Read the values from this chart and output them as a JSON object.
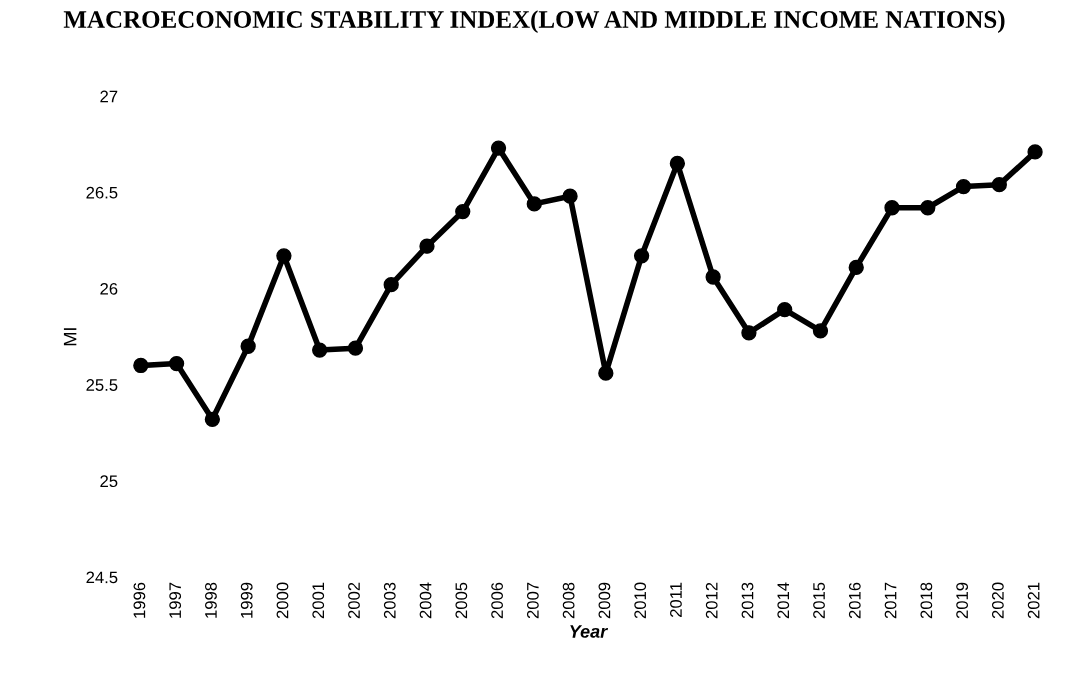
{
  "chart_data": {
    "type": "line",
    "title": "MACROECONOMIC STABILITY INDEX(LOW AND MIDDLE INCOME NATIONS)",
    "xlabel": "Year",
    "ylabel": "MI",
    "categories": [
      "1996",
      "1997",
      "1998",
      "1999",
      "2000",
      "2001",
      "2002",
      "2003",
      "2004",
      "2005",
      "2006",
      "2007",
      "2008",
      "2009",
      "2010",
      "2011",
      "2012",
      "2013",
      "2014",
      "2015",
      "2016",
      "2017",
      "2018",
      "2019",
      "2020",
      "2021"
    ],
    "series": [
      {
        "color": "#000000",
        "values": [
          25.6,
          25.61,
          25.32,
          25.7,
          26.17,
          25.68,
          25.69,
          26.02,
          26.22,
          26.4,
          26.73,
          26.44,
          26.48,
          25.56,
          26.17,
          26.65,
          26.06,
          25.77,
          25.89,
          25.78,
          26.11,
          26.42,
          26.42,
          26.53,
          26.54,
          26.71
        ]
      }
    ],
    "ylim": [
      24.5,
      27
    ],
    "yticks": [
      24.5,
      25,
      25.5,
      26,
      26.5,
      27
    ],
    "marker": "circle",
    "line_style": "solid",
    "grid": false,
    "legend": false
  }
}
